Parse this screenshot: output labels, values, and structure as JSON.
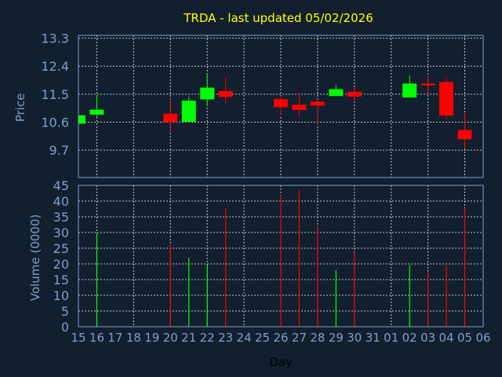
{
  "chart_data": [
    {
      "type": "candlestick",
      "title": "TRDA - last updated 05/02/2026",
      "ylabel": "Price",
      "xlabel": "",
      "ylim": [
        8.82,
        13.39
      ],
      "yticks": [
        "13.3",
        "12.4",
        "11.5",
        "10.6",
        "9.7"
      ],
      "grid": true,
      "colors": {
        "up": "#00ff00",
        "down": "#ff0000",
        "axis": "#7fa0c8",
        "title": "#ffff00",
        "background": "#111f2f"
      },
      "categories": [
        "15",
        "16",
        "17",
        "18",
        "19",
        "20",
        "21",
        "22",
        "23",
        "24",
        "25",
        "26",
        "27",
        "28",
        "29",
        "30",
        "31",
        "01",
        "02",
        "03",
        "04",
        "05",
        "06"
      ],
      "candles": [
        {
          "day": "15",
          "open": 10.55,
          "high": 10.82,
          "low": 10.55,
          "close": 10.82
        },
        {
          "day": "16",
          "open": 10.84,
          "high": 11.49,
          "low": 10.76,
          "close": 11.0
        },
        {
          "day": "20",
          "open": 10.87,
          "high": 11.34,
          "low": 10.32,
          "close": 10.6
        },
        {
          "day": "21",
          "open": 10.61,
          "high": 11.42,
          "low": 10.61,
          "close": 11.29
        },
        {
          "day": "22",
          "open": 11.33,
          "high": 12.18,
          "low": 11.12,
          "close": 11.71
        },
        {
          "day": "23",
          "open": 11.6,
          "high": 12.04,
          "low": 11.18,
          "close": 11.41
        },
        {
          "day": "26",
          "open": 11.34,
          "high": 11.45,
          "low": 10.81,
          "close": 11.08
        },
        {
          "day": "27",
          "open": 11.16,
          "high": 11.55,
          "low": 10.79,
          "close": 10.99
        },
        {
          "day": "28",
          "open": 11.26,
          "high": 11.31,
          "low": 10.5,
          "close": 11.13
        },
        {
          "day": "29",
          "open": 11.44,
          "high": 11.8,
          "low": 11.44,
          "close": 11.66
        },
        {
          "day": "30",
          "open": 11.58,
          "high": 11.74,
          "low": 11.26,
          "close": 11.42
        },
        {
          "day": "02",
          "open": 11.39,
          "high": 12.1,
          "low": 11.39,
          "close": 11.84
        },
        {
          "day": "03",
          "open": 11.84,
          "high": 12.08,
          "low": 11.47,
          "close": 11.78
        },
        {
          "day": "04",
          "open": 11.89,
          "high": 12.05,
          "low": 10.67,
          "close": 10.81
        },
        {
          "day": "05",
          "open": 10.35,
          "high": 10.9,
          "low": 9.77,
          "close": 10.05
        }
      ]
    },
    {
      "type": "bar",
      "ylabel": "Volume (0000)",
      "xlabel": "Day",
      "ylim": [
        0,
        45
      ],
      "yticks": [
        "0",
        "5",
        "10",
        "15",
        "20",
        "25",
        "30",
        "35",
        "40",
        "45"
      ],
      "grid": true,
      "categories": [
        "15",
        "16",
        "17",
        "18",
        "19",
        "20",
        "21",
        "22",
        "23",
        "24",
        "25",
        "26",
        "27",
        "28",
        "29",
        "30",
        "31",
        "01",
        "02",
        "03",
        "04",
        "05",
        "06"
      ],
      "bars": [
        {
          "day": "16",
          "value": 30,
          "dir": "up"
        },
        {
          "day": "20",
          "value": 26,
          "dir": "down"
        },
        {
          "day": "21",
          "value": 22,
          "dir": "up"
        },
        {
          "day": "22",
          "value": 19.6,
          "dir": "up"
        },
        {
          "day": "23",
          "value": 37.7,
          "dir": "down"
        },
        {
          "day": "26",
          "value": 41.8,
          "dir": "down"
        },
        {
          "day": "27",
          "value": 43.5,
          "dir": "down"
        },
        {
          "day": "28",
          "value": 32,
          "dir": "down"
        },
        {
          "day": "29",
          "value": 18,
          "dir": "up"
        },
        {
          "day": "30",
          "value": 23.4,
          "dir": "down"
        },
        {
          "day": "02",
          "value": 19.6,
          "dir": "up"
        },
        {
          "day": "03",
          "value": 17.3,
          "dir": "down"
        },
        {
          "day": "04",
          "value": 19.6,
          "dir": "down"
        },
        {
          "day": "05",
          "value": 37.7,
          "dir": "down"
        }
      ]
    }
  ]
}
